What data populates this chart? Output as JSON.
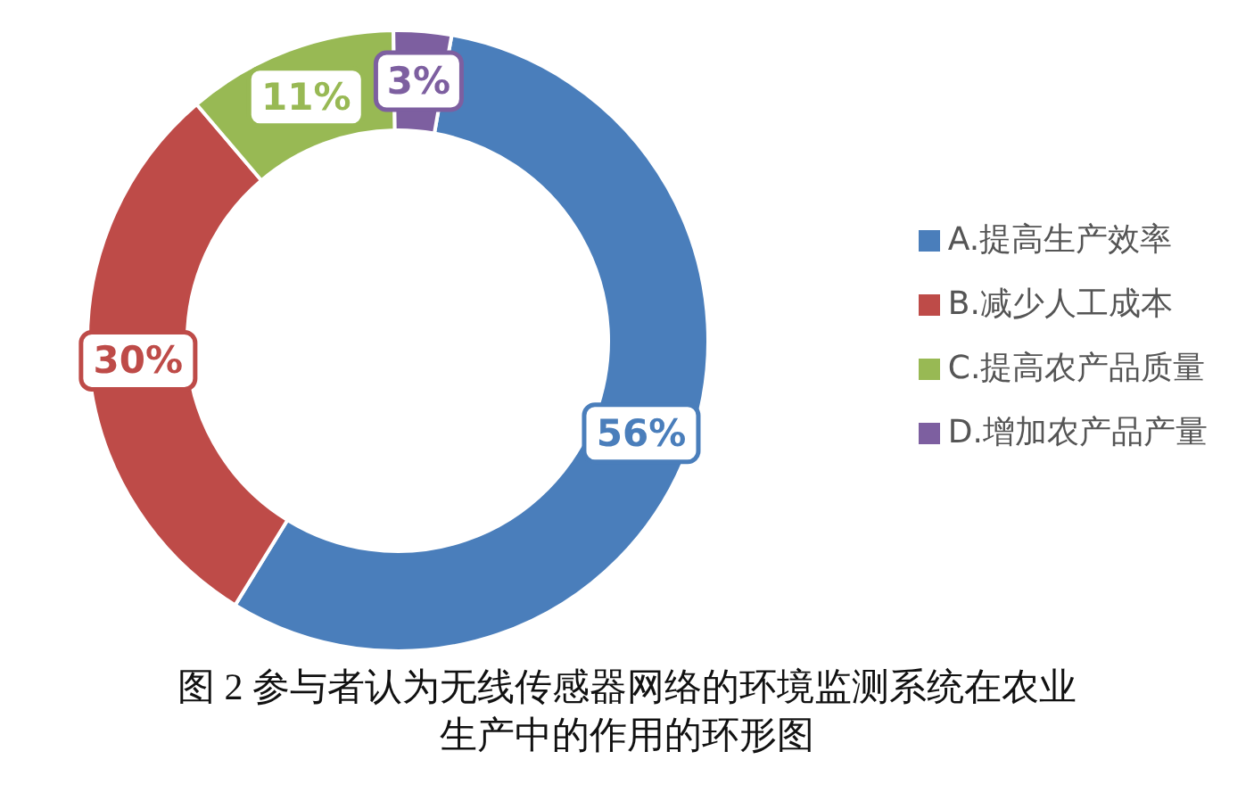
{
  "chart_data": {
    "type": "donut",
    "title": "图 2 参与者认为无线传感器网络的环境监测系统在农业生产中的作用的环形图",
    "categories": [
      "A.提高生产效率",
      "B.减少人工成本",
      "C.提高农产品质量",
      "D.增加农产品产量"
    ],
    "values": [
      56,
      30,
      11,
      3
    ],
    "colors": [
      "#4a7ebb",
      "#be4b48",
      "#98b954",
      "#7d5fa0"
    ],
    "value_labels": [
      "56%",
      "30%",
      "11%",
      "3%"
    ],
    "legend": "right"
  }
}
